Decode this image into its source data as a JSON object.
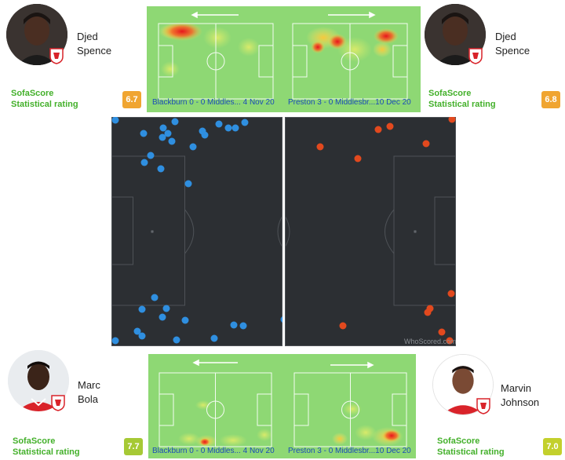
{
  "players": [
    {
      "id": "spence_a",
      "name_line1": "Djed",
      "name_line2": "Spence",
      "rating_label_1": "SofaScore",
      "rating_label_2": "Statistical rating",
      "rating": "6.7",
      "rating_color": "#f0a531"
    },
    {
      "id": "spence_b",
      "name_line1": "Djed",
      "name_line2": "Spence",
      "rating_label_1": "SofaScore",
      "rating_label_2": "Statistical rating",
      "rating": "6.8",
      "rating_color": "#f0a531"
    },
    {
      "id": "bola",
      "name_line1": "Marc",
      "name_line2": "Bola",
      "rating_label_1": "SofaScore",
      "rating_label_2": "Statistical rating",
      "rating": "7.7",
      "rating_color": "#a6c935"
    },
    {
      "id": "johnson",
      "name_line1": "Marvin",
      "name_line2": "Johnson",
      "rating_label_1": "SofaScore",
      "rating_label_2": "Statistical rating",
      "rating": "7.0",
      "rating_color": "#c3d02c"
    }
  ],
  "heatmaps_top": [
    {
      "caption": "Blackburn 0 - 0 Middles... 4 Nov 20",
      "direction": "left"
    },
    {
      "caption": "Preston 3 - 0 Middlesbr...10 Dec 20",
      "direction": "right"
    }
  ],
  "heatmaps_bottom": [
    {
      "caption": "Blackburn 0 - 0 Middles... 4 Nov 20",
      "direction": "left"
    },
    {
      "caption": "Preston 3 - 0 Middlesbr...10 Dec 20",
      "direction": "right"
    }
  ],
  "touch_maps": {
    "left_color": "#2f8fe0",
    "right_color": "#e2491e",
    "watermark": "WhoScored.com"
  },
  "colors": {
    "heatmap_bg": "#8ed874",
    "caption_text": "#1a4bb8",
    "rating_label": "#43b02a",
    "pitch_dark": "#2c2f33"
  }
}
